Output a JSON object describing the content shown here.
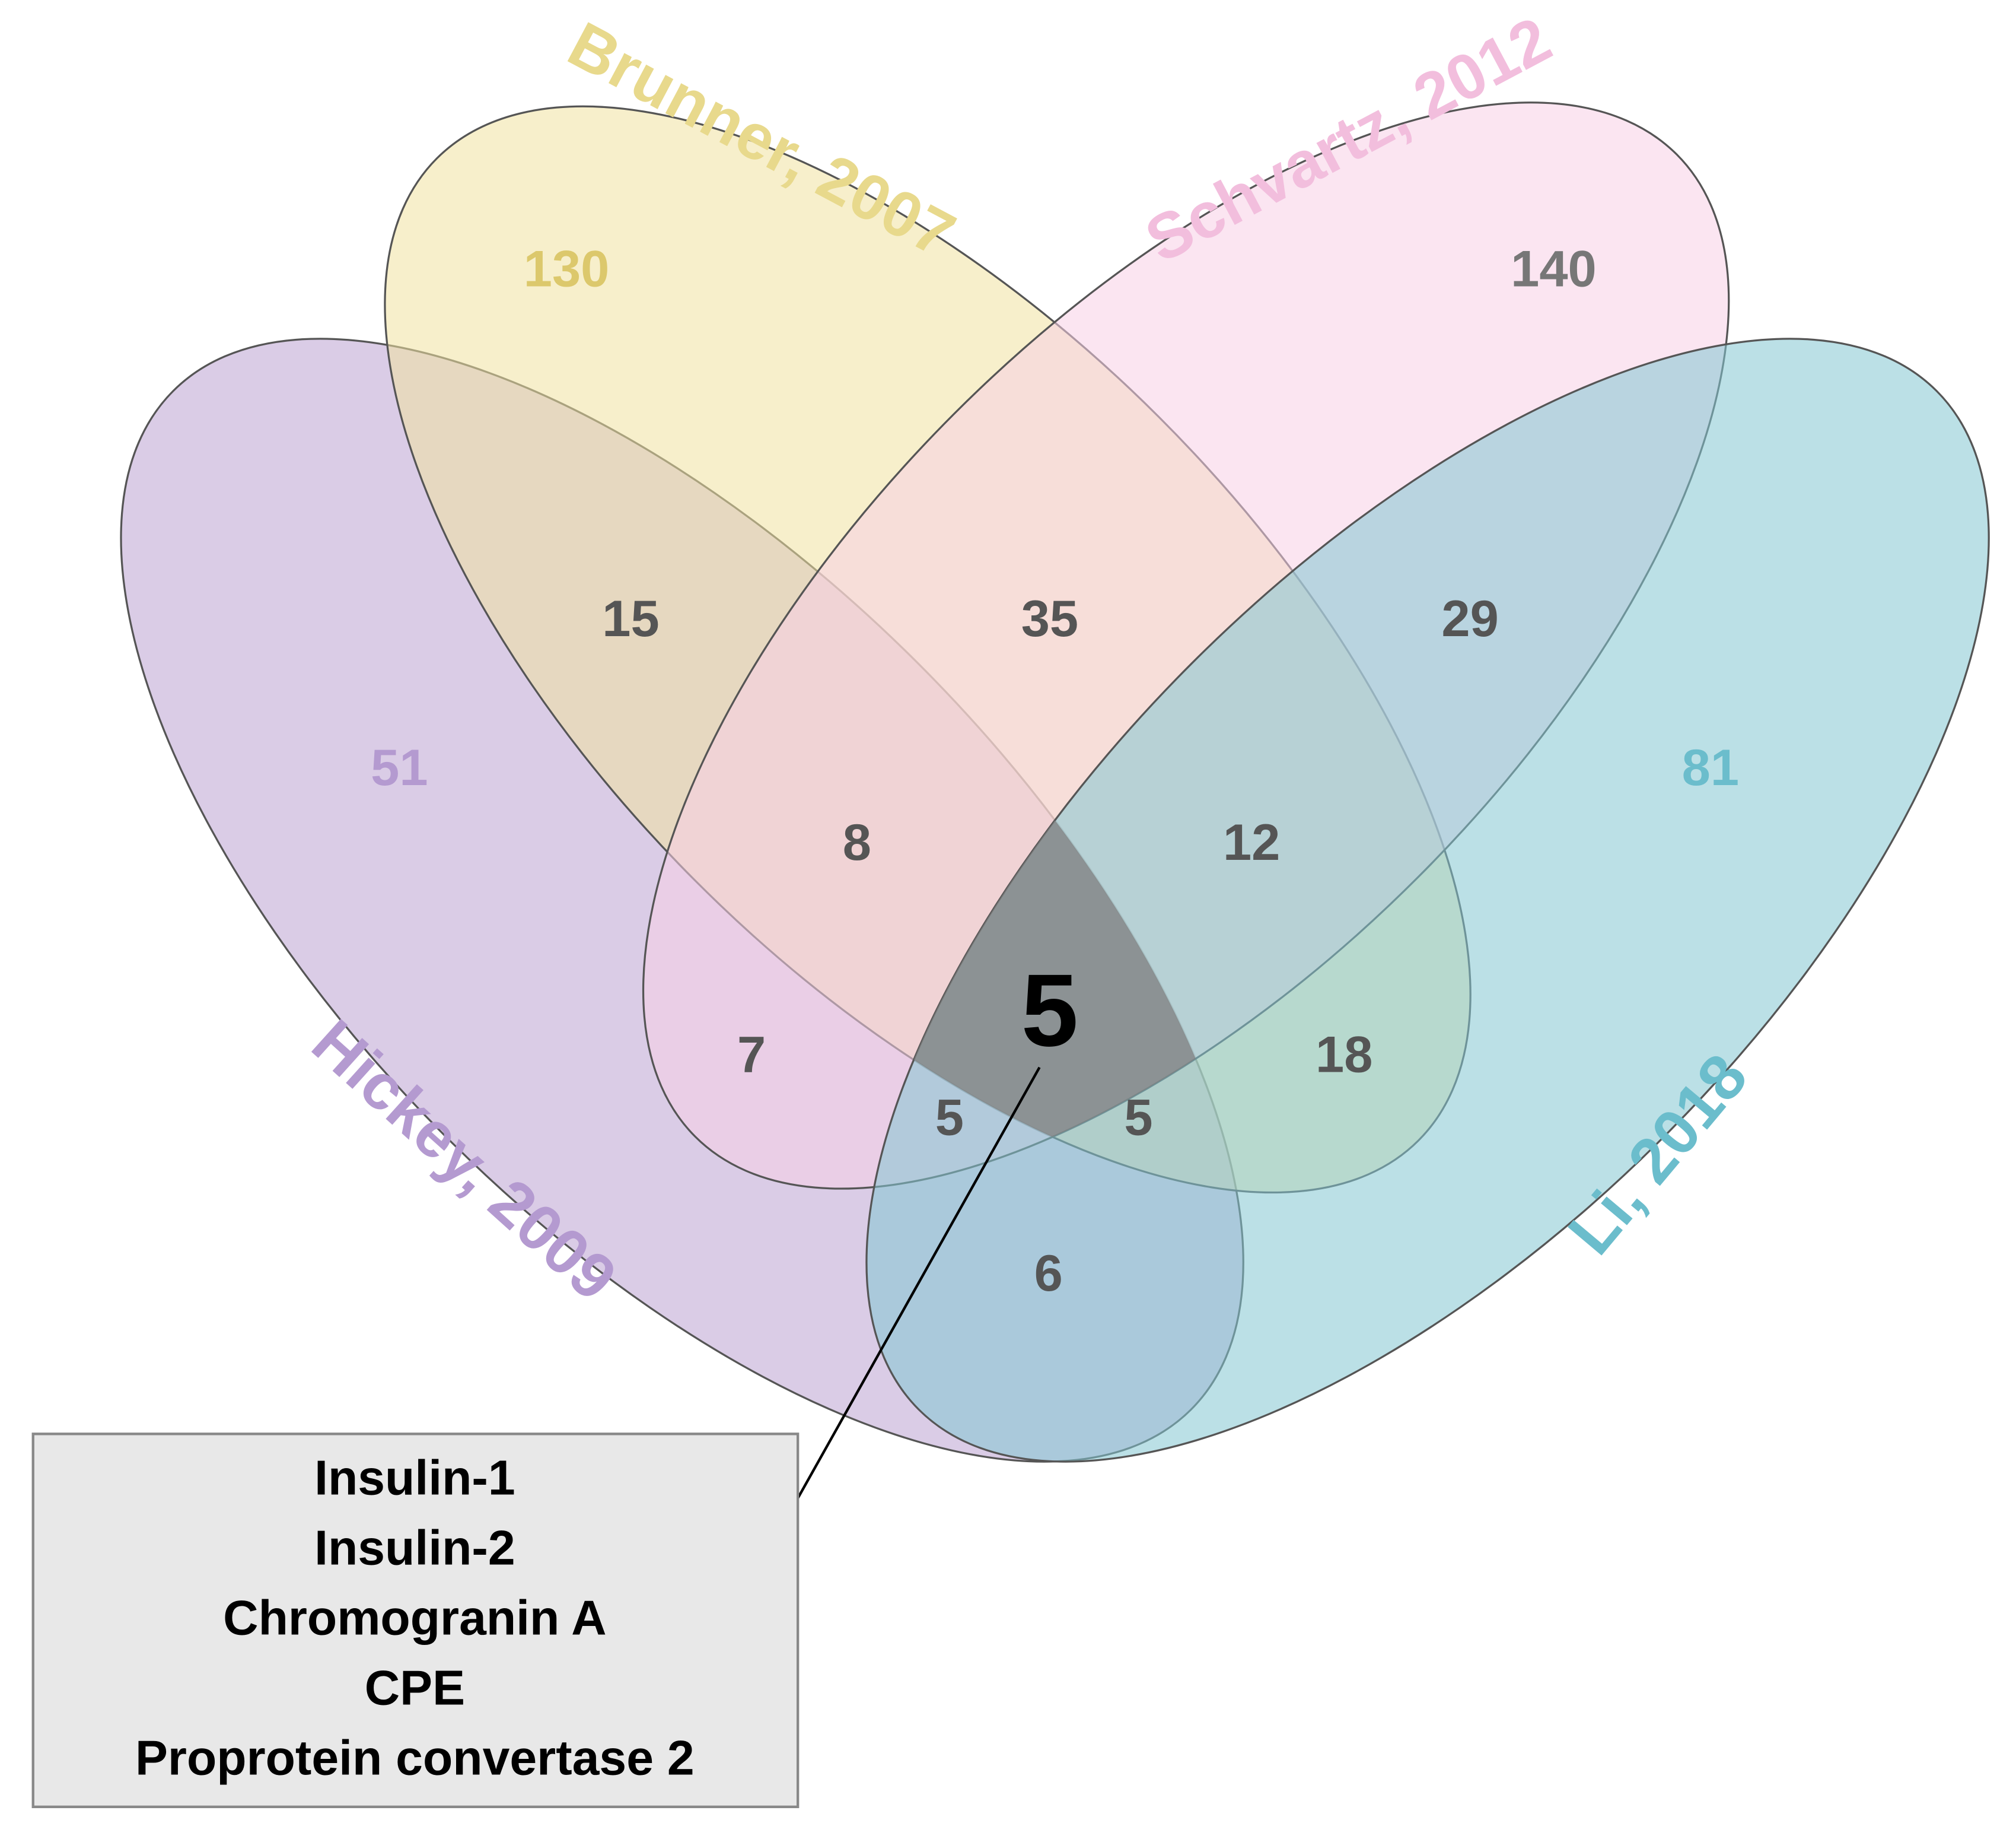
{
  "sets": [
    {
      "name": "Brunner, 2007",
      "color": "#f0e1a0"
    },
    {
      "name": "Schvartz, 2012",
      "color": "#f7cfe6"
    },
    {
      "name": "Hickey, 2009",
      "color": "#bca2d2"
    },
    {
      "name": "Li, 2018",
      "color": "#84c6d2"
    }
  ],
  "regions": [
    130,
    140,
    51,
    81,
    15,
    35,
    29,
    8,
    12,
    7,
    5,
    5,
    5,
    18,
    6
  ],
  "callout": {
    "items": [
      "Insulin-1",
      "Insulin-2",
      "Chromogranin A",
      "CPE",
      "Proprotein convertase 2"
    ]
  }
}
